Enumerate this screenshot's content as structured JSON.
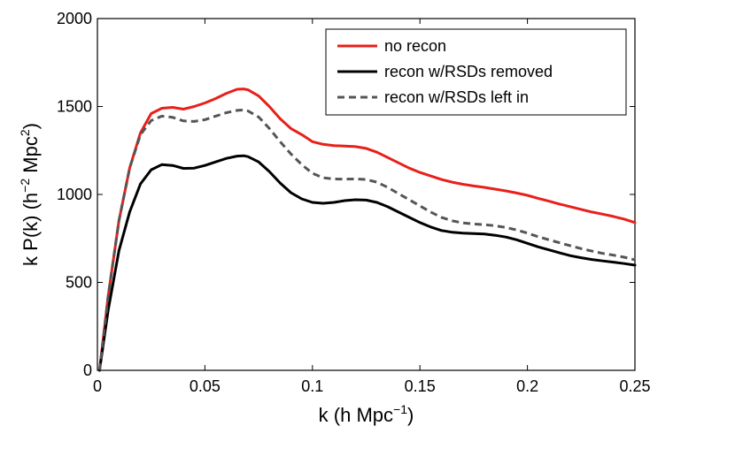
{
  "chart_data": {
    "type": "line",
    "title": "",
    "xlabel": {
      "main": "k (h Mpc",
      "sup": "−1",
      "close": ")"
    },
    "ylabel": {
      "a": "k P(k) (h",
      "sup1": "−2",
      "b": " Mpc",
      "sup2": "2",
      "c": ")"
    },
    "xlim": [
      0,
      0.25
    ],
    "ylim": [
      0,
      2000
    ],
    "xticks": [
      0,
      0.05,
      0.1,
      0.15,
      0.2,
      0.25
    ],
    "xtick_labels": [
      "0",
      "0.05",
      "0.1",
      "0.15",
      "0.2",
      "0.25"
    ],
    "yticks": [
      0,
      500,
      1000,
      1500,
      2000
    ],
    "ytick_labels": [
      "0",
      "500",
      "1000",
      "1500",
      "2000"
    ],
    "grid": false,
    "legend_position": "top-right",
    "series": [
      {
        "name": "no recon",
        "color": "#e8201a",
        "style": "solid",
        "x": [
          0.001,
          0.005,
          0.01,
          0.015,
          0.02,
          0.025,
          0.03,
          0.035,
          0.04,
          0.045,
          0.05,
          0.055,
          0.06,
          0.065,
          0.068,
          0.07,
          0.075,
          0.08,
          0.085,
          0.09,
          0.095,
          0.1,
          0.105,
          0.11,
          0.115,
          0.12,
          0.125,
          0.13,
          0.135,
          0.14,
          0.145,
          0.15,
          0.155,
          0.16,
          0.165,
          0.17,
          0.175,
          0.18,
          0.185,
          0.19,
          0.195,
          0.2,
          0.205,
          0.21,
          0.215,
          0.22,
          0.225,
          0.23,
          0.235,
          0.24,
          0.245,
          0.25
        ],
        "y": [
          0,
          420,
          850,
          1150,
          1350,
          1460,
          1490,
          1495,
          1485,
          1500,
          1520,
          1545,
          1575,
          1598,
          1600,
          1595,
          1560,
          1500,
          1430,
          1375,
          1340,
          1300,
          1285,
          1278,
          1275,
          1272,
          1262,
          1240,
          1210,
          1180,
          1150,
          1125,
          1105,
          1085,
          1070,
          1058,
          1048,
          1040,
          1030,
          1020,
          1008,
          995,
          978,
          962,
          945,
          930,
          915,
          900,
          888,
          875,
          860,
          840
        ]
      },
      {
        "name": "recon w/RSDs removed",
        "color": "#000000",
        "style": "solid",
        "x": [
          0.001,
          0.005,
          0.01,
          0.015,
          0.02,
          0.025,
          0.03,
          0.035,
          0.04,
          0.045,
          0.05,
          0.055,
          0.06,
          0.065,
          0.068,
          0.07,
          0.075,
          0.08,
          0.085,
          0.09,
          0.095,
          0.1,
          0.105,
          0.11,
          0.115,
          0.12,
          0.125,
          0.13,
          0.135,
          0.14,
          0.145,
          0.15,
          0.155,
          0.16,
          0.165,
          0.17,
          0.175,
          0.18,
          0.185,
          0.19,
          0.195,
          0.2,
          0.205,
          0.21,
          0.215,
          0.22,
          0.225,
          0.23,
          0.235,
          0.24,
          0.245,
          0.25
        ],
        "y": [
          0,
          340,
          680,
          900,
          1060,
          1140,
          1170,
          1165,
          1148,
          1150,
          1165,
          1185,
          1205,
          1218,
          1220,
          1215,
          1185,
          1130,
          1065,
          1010,
          975,
          955,
          950,
          955,
          965,
          970,
          968,
          955,
          930,
          900,
          870,
          840,
          815,
          795,
          785,
          780,
          778,
          775,
          768,
          758,
          742,
          722,
          702,
          685,
          668,
          652,
          640,
          630,
          622,
          615,
          607,
          598
        ]
      },
      {
        "name": "recon w/RSDs left in",
        "color": "#555555",
        "style": "dashed",
        "x": [
          0.001,
          0.005,
          0.01,
          0.015,
          0.02,
          0.025,
          0.03,
          0.035,
          0.04,
          0.045,
          0.05,
          0.055,
          0.06,
          0.065,
          0.068,
          0.07,
          0.075,
          0.08,
          0.085,
          0.09,
          0.095,
          0.1,
          0.105,
          0.11,
          0.115,
          0.12,
          0.125,
          0.13,
          0.135,
          0.14,
          0.145,
          0.15,
          0.155,
          0.16,
          0.165,
          0.17,
          0.175,
          0.18,
          0.185,
          0.19,
          0.195,
          0.2,
          0.205,
          0.21,
          0.215,
          0.22,
          0.225,
          0.23,
          0.235,
          0.24,
          0.245,
          0.25
        ],
        "y": [
          0,
          420,
          850,
          1150,
          1340,
          1420,
          1445,
          1438,
          1418,
          1415,
          1425,
          1445,
          1465,
          1478,
          1480,
          1475,
          1440,
          1375,
          1300,
          1230,
          1170,
          1120,
          1095,
          1088,
          1087,
          1088,
          1085,
          1070,
          1040,
          1005,
          970,
          935,
          900,
          870,
          850,
          838,
          832,
          828,
          822,
          812,
          798,
          780,
          760,
          742,
          725,
          708,
          692,
          678,
          665,
          655,
          643,
          628
        ]
      }
    ]
  }
}
